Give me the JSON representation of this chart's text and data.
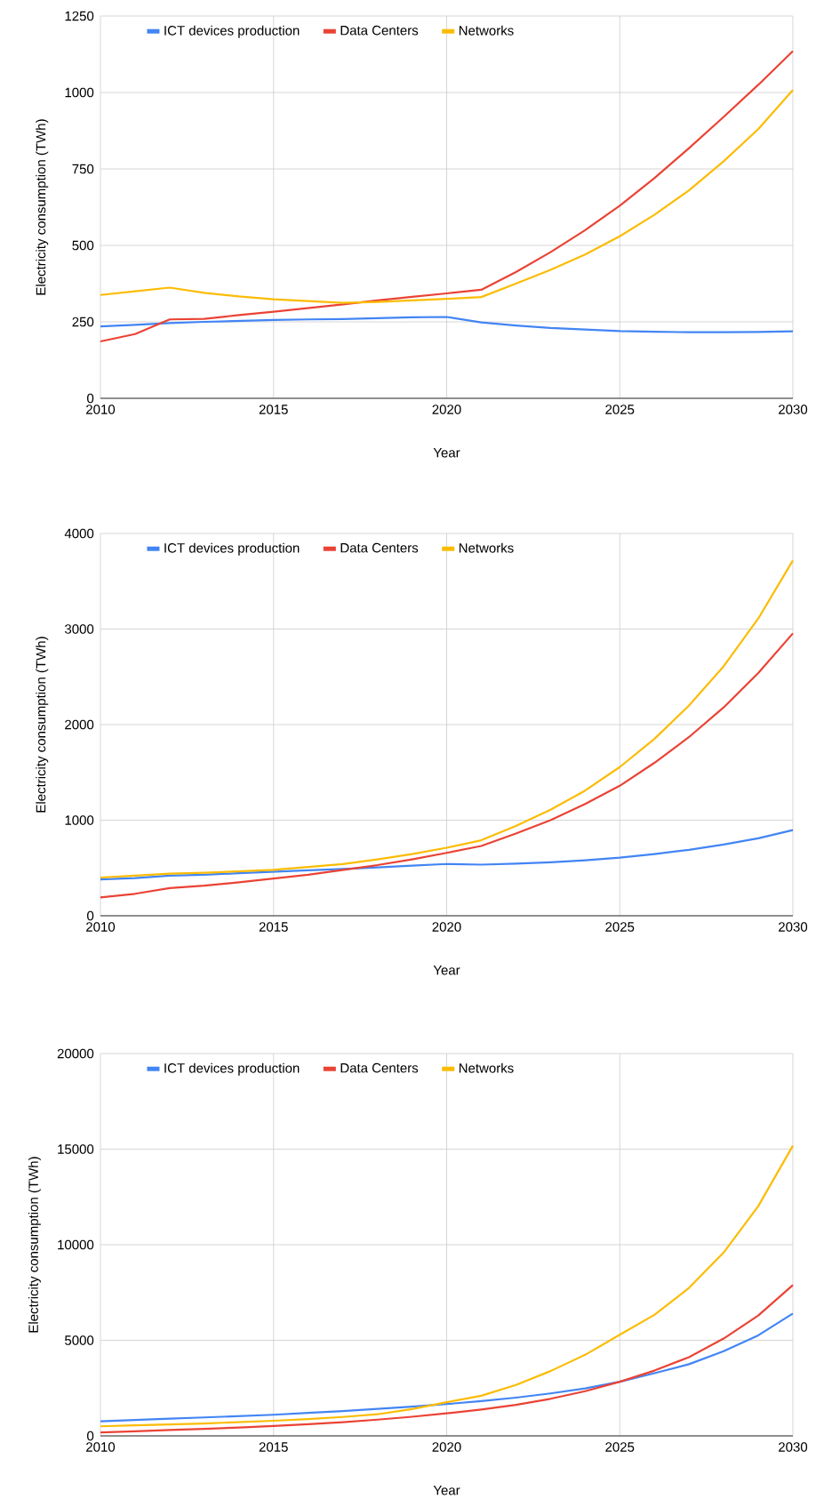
{
  "chart_data": [
    {
      "type": "line",
      "xlabel": "Year",
      "ylabel": "Electricity consumption (TWh)",
      "x": [
        2010,
        2011,
        2012,
        2013,
        2014,
        2015,
        2016,
        2017,
        2018,
        2019,
        2020,
        2021,
        2022,
        2023,
        2024,
        2025,
        2026,
        2027,
        2028,
        2029,
        2030
      ],
      "xlim": [
        2010,
        2030
      ],
      "xticks": [
        2010,
        2015,
        2020,
        2025,
        2030
      ],
      "ylim": [
        0,
        1250
      ],
      "yticks": [
        0,
        250,
        500,
        750,
        1000,
        1250
      ],
      "grid": true,
      "legend": "top left",
      "marker": "none",
      "series": [
        {
          "name": "ICT devices production",
          "color": "#4285f4",
          "values": [
            235,
            240,
            246,
            250,
            253,
            256,
            258,
            259,
            262,
            265,
            266,
            248,
            238,
            230,
            225,
            220,
            218,
            216,
            216,
            217,
            219
          ]
        },
        {
          "name": "Data Centers",
          "color": "#ea4335",
          "values": [
            186,
            210,
            258,
            260,
            272,
            283,
            295,
            307,
            320,
            332,
            343,
            355,
            413,
            478,
            550,
            630,
            720,
            818,
            920,
            1025,
            1135
          ]
        },
        {
          "name": "Networks",
          "color": "#fbbc04",
          "values": [
            338,
            350,
            362,
            345,
            333,
            324,
            318,
            312,
            315,
            320,
            325,
            331,
            375,
            420,
            470,
            530,
            600,
            680,
            775,
            880,
            1008
          ]
        }
      ]
    },
    {
      "type": "line",
      "xlabel": "Year",
      "ylabel": "Electricity consumption (TWh)",
      "x": [
        2010,
        2011,
        2012,
        2013,
        2014,
        2015,
        2016,
        2017,
        2018,
        2019,
        2020,
        2021,
        2022,
        2023,
        2024,
        2025,
        2026,
        2027,
        2028,
        2029,
        2030
      ],
      "xlim": [
        2010,
        2030
      ],
      "xticks": [
        2010,
        2015,
        2020,
        2025,
        2030
      ],
      "ylim": [
        0,
        4000
      ],
      "yticks": [
        0,
        1000,
        2000,
        3000,
        4000
      ],
      "grid": true,
      "legend": "top left",
      "marker": "none",
      "series": [
        {
          "name": "ICT devices production",
          "color": "#4285f4",
          "values": [
            380,
            395,
            420,
            430,
            445,
            460,
            475,
            490,
            505,
            525,
            542,
            535,
            545,
            560,
            580,
            608,
            645,
            690,
            745,
            810,
            896
          ]
        },
        {
          "name": "Data Centers",
          "color": "#ea4335",
          "values": [
            192,
            230,
            290,
            315,
            350,
            390,
            430,
            480,
            530,
            590,
            658,
            730,
            860,
            1000,
            1170,
            1360,
            1600,
            1870,
            2180,
            2540,
            2955
          ]
        },
        {
          "name": "Networks",
          "color": "#fbbc04",
          "values": [
            400,
            420,
            440,
            450,
            465,
            480,
            510,
            540,
            590,
            645,
            712,
            790,
            940,
            1110,
            1310,
            1556,
            1850,
            2200,
            2610,
            3110,
            3718
          ]
        }
      ]
    },
    {
      "type": "line",
      "xlabel": "Year",
      "ylabel": "Electricity consumption (TWh)",
      "x": [
        2010,
        2011,
        2012,
        2013,
        2014,
        2015,
        2016,
        2017,
        2018,
        2019,
        2020,
        2021,
        2022,
        2023,
        2024,
        2025,
        2026,
        2027,
        2028,
        2029,
        2030
      ],
      "xlim": [
        2010,
        2030
      ],
      "xticks": [
        2010,
        2015,
        2020,
        2025,
        2030
      ],
      "ylim": [
        0,
        20000
      ],
      "yticks": [
        0,
        5000,
        10000,
        15000,
        20000
      ],
      "grid": true,
      "legend": "top left",
      "marker": "none",
      "series": [
        {
          "name": "ICT devices production",
          "color": "#4285f4",
          "values": [
            765,
            830,
            900,
            965,
            1035,
            1105,
            1200,
            1300,
            1410,
            1530,
            1665,
            1820,
            2000,
            2220,
            2480,
            2830,
            3280,
            3750,
            4430,
            5260,
            6400
          ]
        },
        {
          "name": "Data Centers",
          "color": "#ea4335",
          "values": [
            180,
            240,
            310,
            370,
            440,
            520,
            610,
            720,
            850,
            1000,
            1180,
            1380,
            1620,
            1940,
            2340,
            2830,
            3415,
            4120,
            5090,
            6300,
            7890
          ]
        },
        {
          "name": "Networks",
          "color": "#fbbc04",
          "values": [
            500,
            550,
            600,
            650,
            720,
            790,
            880,
            990,
            1130,
            1400,
            1760,
            2100,
            2660,
            3390,
            4240,
            5290,
            6330,
            7740,
            9590,
            12020,
            15180
          ]
        }
      ]
    }
  ]
}
